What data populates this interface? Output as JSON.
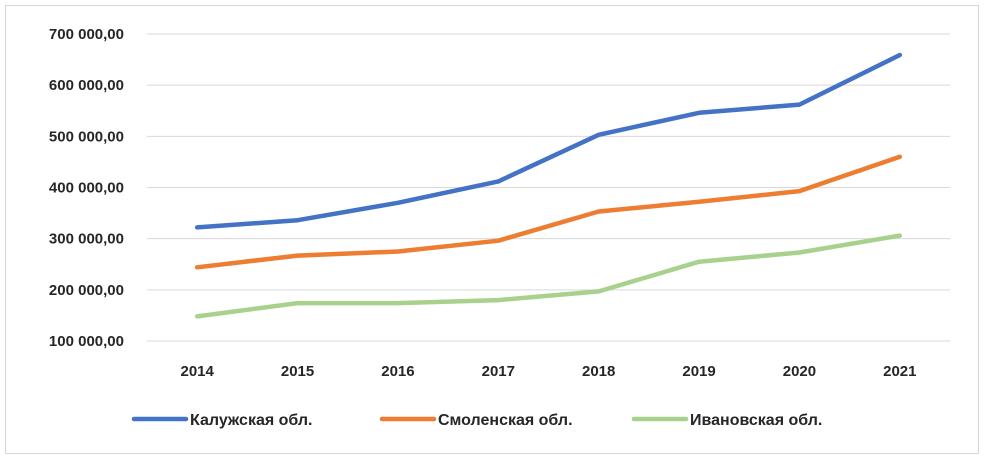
{
  "chart_data": {
    "type": "line",
    "title": "",
    "xlabel": "",
    "ylabel": "",
    "x": [
      "2014",
      "2015",
      "2016",
      "2017",
      "2018",
      "2019",
      "2020",
      "2021"
    ],
    "y_ticks": [
      {
        "value": 100000,
        "label": "100 000,00"
      },
      {
        "value": 200000,
        "label": "200 000,00"
      },
      {
        "value": 300000,
        "label": "300 000,00"
      },
      {
        "value": 400000,
        "label": "400 000,00"
      },
      {
        "value": 500000,
        "label": "500 000,00"
      },
      {
        "value": 600000,
        "label": "600 000,00"
      },
      {
        "value": 700000,
        "label": "700 000,00"
      }
    ],
    "ylim": [
      100000,
      700000
    ],
    "grid": true,
    "legend_position": "bottom",
    "series": [
      {
        "name": "Калужская обл.",
        "color": "#4472c4",
        "values": [
          322000,
          336000,
          370000,
          412000,
          503000,
          546000,
          562000,
          659000
        ]
      },
      {
        "name": "Смоленская обл.",
        "color": "#ed7d31",
        "values": [
          244000,
          267000,
          275000,
          296000,
          353000,
          372000,
          393000,
          460000
        ]
      },
      {
        "name": "Ивановская обл.",
        "color": "#a9d18e",
        "values": [
          148000,
          174000,
          174000,
          180000,
          197000,
          255000,
          273000,
          306000
        ]
      }
    ]
  }
}
